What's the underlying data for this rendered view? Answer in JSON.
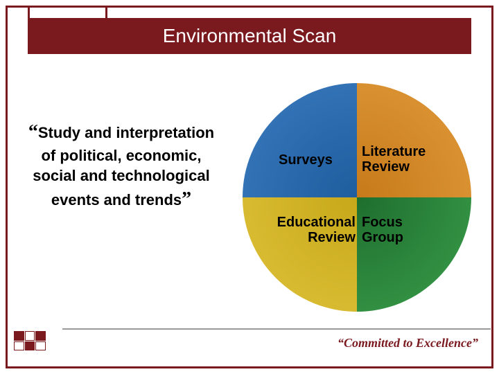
{
  "title": "Environmental Scan",
  "quote": {
    "open": "“",
    "text": "Study and interpretation of political, economic, social and technological events and trends",
    "close": "”"
  },
  "diagram": {
    "type": "quad-circle",
    "quadrants": [
      {
        "label": "Surveys",
        "color_inner": "#1e5e9e",
        "color_outer": "#3a7abf"
      },
      {
        "label": "Literature\nReview",
        "color_inner": "#c77a1a",
        "color_outer": "#e09a3a"
      },
      {
        "label": "Educational\nReview",
        "color_inner": "#c7a81a",
        "color_outer": "#e0c23a"
      },
      {
        "label": "Focus\nGroup",
        "color_inner": "#1e6e2e",
        "color_outer": "#3a9e4a"
      }
    ],
    "label_fontsize": 20,
    "label_color": "#000000",
    "label_weight": "bold"
  },
  "tagline": "“Committed to Excellence”",
  "colors": {
    "frame": "#7a1a1f",
    "title_bg": "#7a1a1f",
    "title_text": "#ffffff",
    "background": "#ffffff",
    "footer_line": "#999999",
    "tagline_text": "#7a1a1f"
  },
  "typography": {
    "title_fontsize": 28,
    "quote_fontsize": 22,
    "tagline_fontsize": 18
  }
}
